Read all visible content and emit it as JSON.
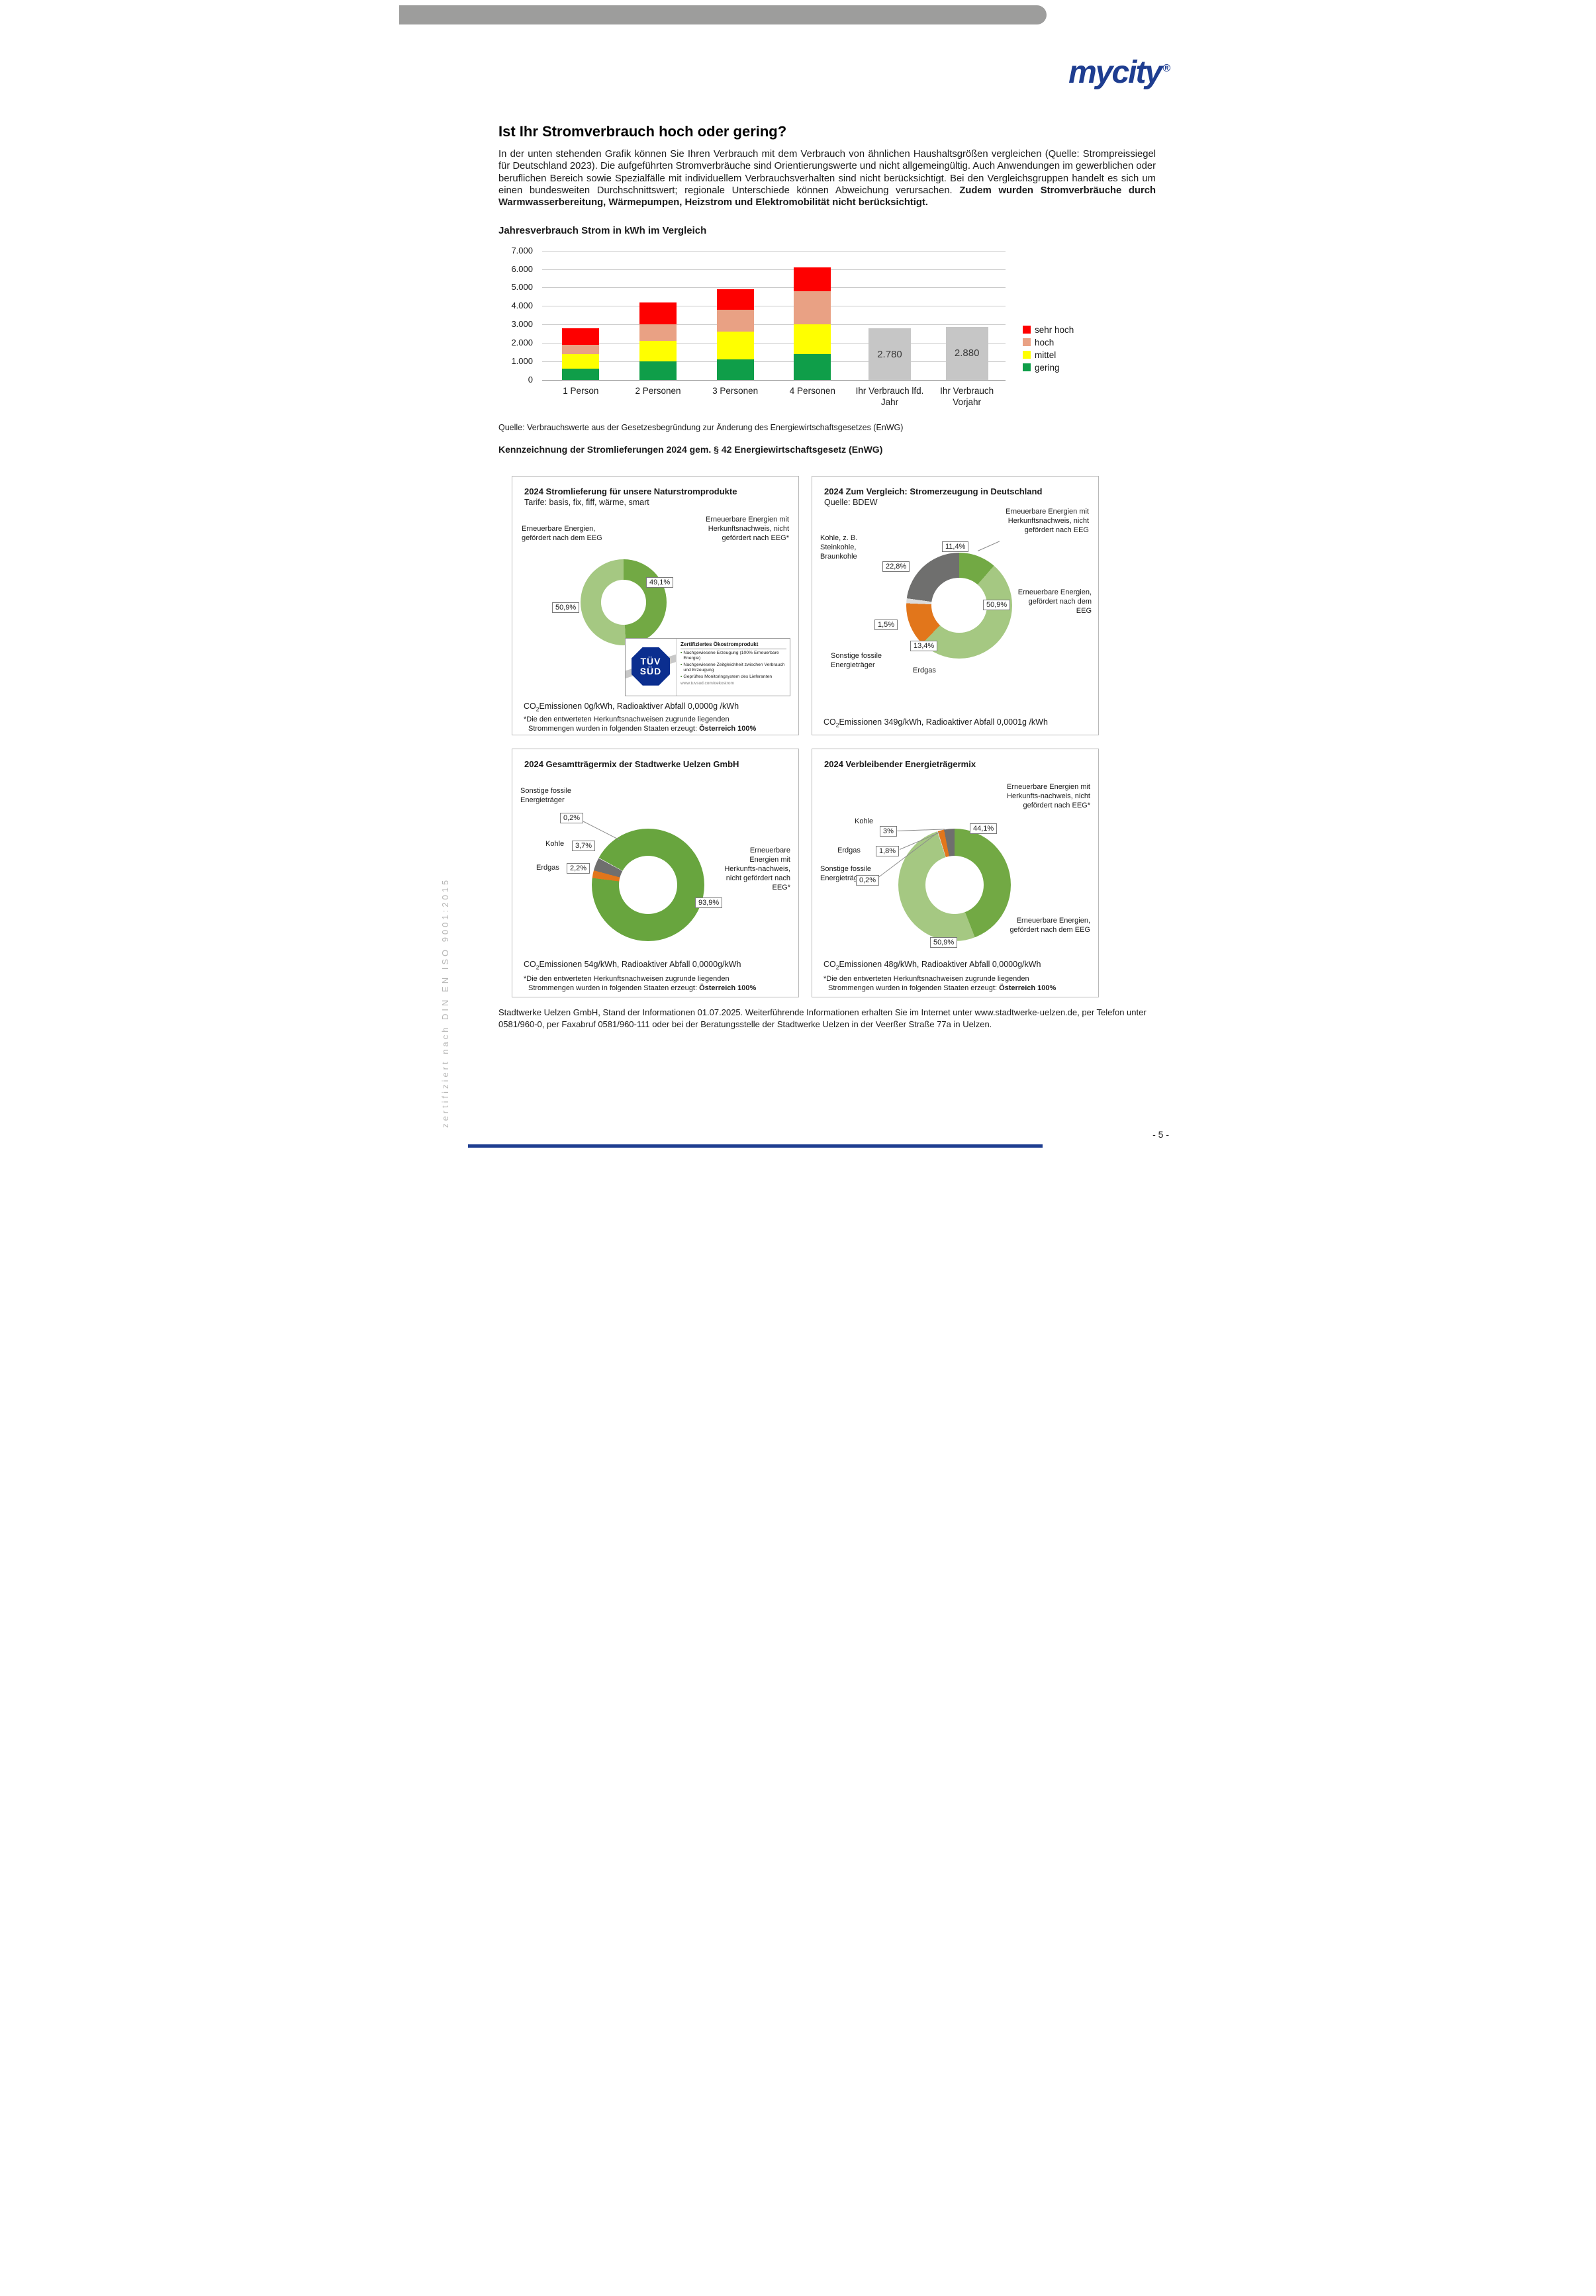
{
  "page": {
    "logo": "mycity",
    "logo_reg": "®",
    "title": "Ist Ihr Stromverbrauch hoch oder gering?",
    "intro_text": "In der unten stehenden Grafik können Sie Ihren Verbrauch mit dem Verbrauch von ähnlichen Haushaltsgrößen vergleichen (Quelle: Strompreissiegel für Deutschland 2023). Die aufgeführten Stromverbräuche sind Orientierungswerte und nicht allgemeingültig. Auch Anwendungen im gewerblichen oder beruflichen Bereich sowie Spezialfälle mit individuellem Verbrauchsverhalten sind nicht berücksichtigt. Bei den Vergleichsgruppen handelt es sich um einen bundesweiten Durchschnittswert; regionale Unterschiede können Abweichung verursachen. ",
    "intro_text_bold": "Zudem wurden Stromverbräuche durch Warmwasserbereitung, Wärmepumpen, Heizstrom und Elektromobilität nicht berücksichtigt.",
    "chart_source": "Quelle: Verbrauchswerte aus der Gesetzesbegründung zur Änderung des Energiewirtschaftsgesetzes (EnWG)",
    "section_heading": "Kennzeichnung der Stromlieferungen 2024 gem. § 42 Energiewirtschaftsgesetz (EnWG)",
    "footer": "Stadtwerke Uelzen GmbH, Stand der Informationen 01.07.2025. Weiterführende Informationen erhalten Sie im Internet unter www.stadtwerke-uelzen.de, per Telefon unter 0581/960-0, per Faxabruf 0581/960-111 oder bei der Beratungsstelle der Stadtwerke Uelzen in der Veerßer Straße 77a in Uelzen.",
    "side_vertical_text": "zertifiziert nach DIN EN ISO 9001:2015",
    "page_number": "- 5 -"
  },
  "chart_data": [
    {
      "id": "jahresverbrauch-bar",
      "type": "bar",
      "stacked": true,
      "title": "Jahresverbrauch Strom in kWh im Vergleich",
      "categories": [
        "1 Person",
        "2 Personen",
        "3 Personen",
        "4 Personen",
        "Ihr Verbrauch lfd. Jahr",
        "Ihr Verbrauch Vorjahr"
      ],
      "series": [
        {
          "name": "gering",
          "color": "#0f9e49",
          "values": [
            600,
            1000,
            1100,
            1400,
            0,
            0
          ]
        },
        {
          "name": "mittel",
          "color": "#ffff00",
          "values": [
            800,
            1100,
            1500,
            1600,
            0,
            0
          ]
        },
        {
          "name": "hoch",
          "color": "#e9a184",
          "values": [
            500,
            900,
            1200,
            1800,
            0,
            0
          ]
        },
        {
          "name": "sehr hoch",
          "color": "#fe0000",
          "values": [
            900,
            1200,
            1100,
            1300,
            0,
            0
          ]
        }
      ],
      "extra_bars": [
        {
          "category_index": 4,
          "value": 2780,
          "label": "2.780",
          "color": "#c6c6c6"
        },
        {
          "category_index": 5,
          "value": 2880,
          "label": "2.880",
          "color": "#c6c6c6"
        }
      ],
      "ylim": [
        0,
        7000
      ],
      "ytick_step": 1000,
      "ytick_labels": [
        "0",
        "1.000",
        "2.000",
        "3.000",
        "4.000",
        "5.000",
        "6.000",
        "7.000"
      ],
      "legend": [
        "sehr hoch",
        "hoch",
        "mittel",
        "gering"
      ],
      "legend_position": "right",
      "grid": true
    },
    {
      "id": "donut-naturstrom",
      "type": "pie",
      "donut": true,
      "title": "2024 Stromlieferung für unsere Naturstromprodukte",
      "start_angle": 0,
      "segments": [
        {
          "label": "Erneuerbare Energien mit Herkunftsnachweis, nicht gefördert nach EEG*",
          "value": 49.1,
          "display": "49,1%",
          "color": "#72a944"
        },
        {
          "label": "Erneuerbare Energien, gefördert nach dem EEG",
          "value": 50.9,
          "display": "50,9%",
          "color": "#a5c882"
        }
      ]
    },
    {
      "id": "donut-deutschland",
      "type": "pie",
      "donut": true,
      "title": "2024 Zum Vergleich: Stromerzeugung in Deutschland",
      "start_angle": 0,
      "segments": [
        {
          "label": "Erneuerbare Energien mit Herkunftsnachweis, nicht gefördert nach EEG",
          "value": 11.4,
          "display": "11,4%",
          "color": "#72a944"
        },
        {
          "label": "Erneuerbare Energien, gefördert nach dem EEG",
          "value": 50.9,
          "display": "50,9%",
          "color": "#a5c882"
        },
        {
          "label": "Erdgas",
          "value": 13.4,
          "display": "13,4%",
          "color": "#e2761b"
        },
        {
          "label": "Sonstige fossile Energieträger",
          "value": 1.5,
          "display": "1,5%",
          "color": "#dcdcdc"
        },
        {
          "label": "Kohle, z. B. Steinkohle, Braunkohle",
          "value": 22.8,
          "display": "22,8%",
          "color": "#6f6f6e"
        }
      ]
    },
    {
      "id": "donut-gesamtmix",
      "type": "pie",
      "donut": true,
      "title": "2024 Gesamtträgermix der Stadtwerke Uelzen GmbH",
      "start_angle": 299,
      "segments": [
        {
          "label": "Erneuerbare Energien mit Herkunfts-nachweis, nicht gefördert nach EEG*",
          "value": 93.9,
          "display": "93,9%",
          "color": "#68a53e"
        },
        {
          "label": "Erdgas",
          "value": 2.2,
          "display": "2,2%",
          "color": "#e2761b"
        },
        {
          "label": "Kohle",
          "value": 3.7,
          "display": "3,7%",
          "color": "#6f6f6e"
        },
        {
          "label": "Sonstige fossile Energieträger",
          "value": 0.2,
          "display": "0,2%",
          "color": "#dcdcdc"
        }
      ]
    },
    {
      "id": "donut-verbleibend",
      "type": "pie",
      "donut": true,
      "title": "2024 Verbleibender Energieträgermix",
      "start_angle": 0,
      "segments": [
        {
          "label": "Erneuerbare Energien mit Herkunfts-nachweis, nicht gefördert nach EEG*",
          "value": 44.1,
          "display": "44,1%",
          "color": "#72a944"
        },
        {
          "label": "Erneuerbare Energien, gefördert nach dem EEG",
          "value": 50.9,
          "display": "50,9%",
          "color": "#a5c882"
        },
        {
          "label": "Sonstige fossile Energieträger",
          "value": 0.2,
          "display": "0,2%",
          "color": "#dcdcdc"
        },
        {
          "label": "Erdgas",
          "value": 1.8,
          "display": "1,8%",
          "color": "#e2761b"
        },
        {
          "label": "Kohle",
          "value": 3.0,
          "display": "3%",
          "color": "#6f6f6e"
        }
      ]
    }
  ],
  "boxes": {
    "b1": {
      "subtitle": "Tarife: basis, fix, fiff, wärme, smart",
      "label_left": "Erneuerbare Energien, gefördert nach dem EEG",
      "label_right": "Erneuerbare Energien mit Herkunftsnachweis, nicht gefördert nach EEG*",
      "co2_prefix": "CO",
      "co2_sub": "2",
      "co2_rest": "Emissionen 0g/kWh, Radioaktiver Abfall 0,0000g /kWh",
      "fn_line1": "*Die den entwerteten Herkunftsnachweisen zugrunde liegenden",
      "fn_line2": "Strommengen wurden in folgenden Staaten erzeugt: ",
      "fn_bold": "Österreich 100%",
      "tuv": {
        "logo_line1": "TÜV",
        "logo_line2": "SÜD",
        "header": "Zertifiziertes Ökostromprodukt",
        "b1": "Nachgewiesene Erzeugung (100% Erneuerbare Energie)",
        "b2": "Nachgewiesene Zeitgleichheit zwischen Verbrauch und Erzeugung",
        "b3": "Geprüftes Monitoringsystem des Lieferanten",
        "url": "www.tuvsud.com/oekostrom"
      }
    },
    "b2": {
      "subtitle": "Quelle: BDEW",
      "label_kohle": "Kohle, z. B. Steinkohle, Braunkohle",
      "label_hkn": "Erneuerbare Energien mit Herkunftsnachweis, nicht gefördert nach EEG",
      "label_eeg": "Erneuerbare Energien, gefördert nach dem EEG",
      "label_sonstige": "Sonstige fossile Energieträger",
      "label_erdgas": "Erdgas",
      "co2_prefix": "CO",
      "co2_sub": "2",
      "co2_rest": "Emissionen 349g/kWh, Radioaktiver Abfall 0,0001g /kWh"
    },
    "b3": {
      "label_sonstige": "Sonstige fossile Energieträger",
      "label_kohle": "Kohle",
      "label_erdgas": "Erdgas",
      "label_hkn": "Erneuerbare Energien mit Herkunfts-nachweis, nicht gefördert nach EEG*",
      "co2_prefix": "CO",
      "co2_sub": "2",
      "co2_rest": "Emissionen 54g/kWh, Radioaktiver Abfall 0,0000g/kWh",
      "fn_line1": "*Die den entwerteten Herkunftsnachweisen zugrunde liegenden",
      "fn_line2": "Strommengen wurden in folgenden Staaten erzeugt: ",
      "fn_bold": "Österreich 100%"
    },
    "b4": {
      "label_kohle": "Kohle",
      "label_erdgas": "Erdgas",
      "label_sonstige": "Sonstige fossile Energieträger",
      "label_hkn": "Erneuerbare Energien mit Herkunfts-nachweis, nicht gefördert nach EEG*",
      "label_eeg": "Erneuerbare Energien, gefördert nach dem EEG",
      "co2_prefix": "CO",
      "co2_sub": "2",
      "co2_rest": "Emissionen 48g/kWh, Radioaktiver Abfall 0,0000g/kWh",
      "fn_line1": "*Die den entwerteten Herkunftsnachweisen zugrunde liegenden",
      "fn_line2": "Strommengen wurden in folgenden Staaten erzeugt: ",
      "fn_bold": "Österreich 100%"
    }
  }
}
